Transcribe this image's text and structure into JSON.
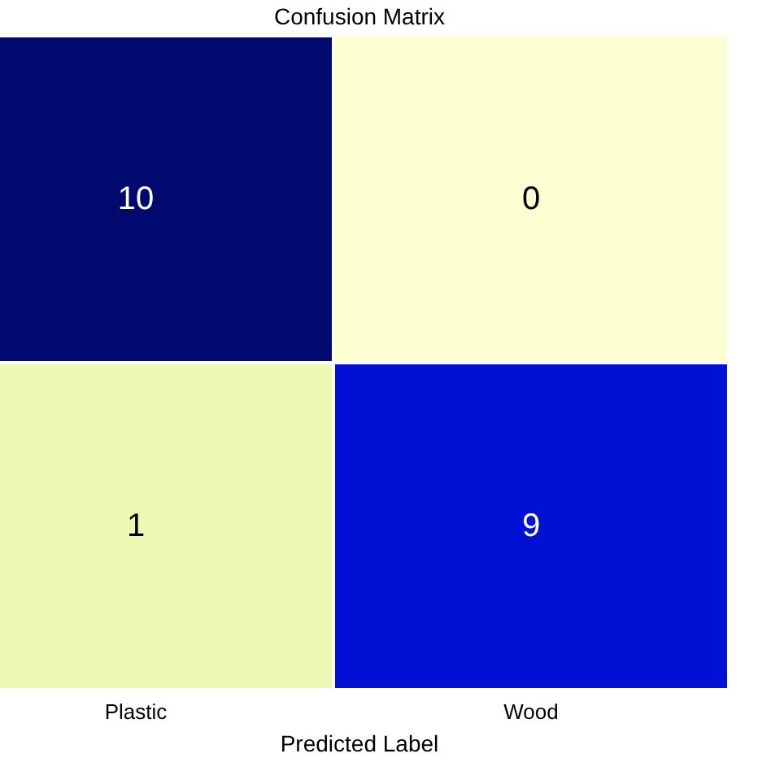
{
  "chart_data": {
    "type": "heatmap",
    "title": "Confusion Matrix",
    "xlabel": "Predicted Label",
    "categories": [
      "Plastic",
      "Wood"
    ],
    "y_categories": [
      null,
      null
    ],
    "cells": [
      [
        10,
        0
      ],
      [
        1,
        9
      ]
    ],
    "colors": [
      "#000a6e",
      "#fdfed2",
      "#edf8b2",
      "#0010d5"
    ],
    "data_labels": true
  }
}
